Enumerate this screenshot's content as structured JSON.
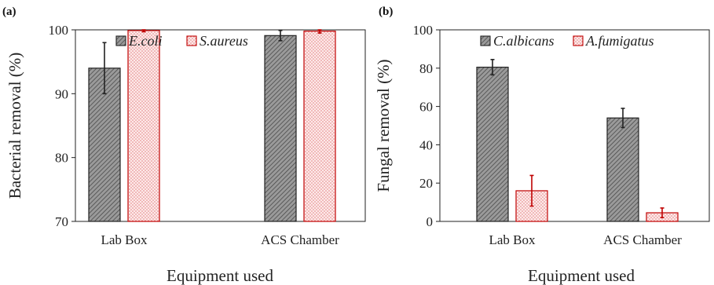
{
  "chart_data": [
    {
      "type": "bar",
      "panel_label": "(a)",
      "categories": [
        "Lab Box",
        "ACS Chamber"
      ],
      "series": [
        {
          "name": "E.coli",
          "values": [
            94,
            99.1
          ],
          "errors": [
            4,
            0.8
          ],
          "color": "#8c8c8c",
          "edge": "#222222",
          "pattern": "diagonal-hatch"
        },
        {
          "name": "S.aureus",
          "values": [
            99.9,
            99.8
          ],
          "errors": [
            0.2,
            0.3
          ],
          "color": "#fbe0e0",
          "edge": "#c00000",
          "pattern": "dots"
        }
      ],
      "xlabel": "Equipment used",
      "ylabel": "Bacterial removal (%)",
      "ylim": [
        70,
        100
      ],
      "yticks": [
        "70",
        "80",
        "90",
        "100"
      ],
      "legend_position": "top",
      "grid": false
    },
    {
      "type": "bar",
      "panel_label": "(b)",
      "categories": [
        "Lab Box",
        "ACS Chamber"
      ],
      "series": [
        {
          "name": "C.albicans",
          "values": [
            80.5,
            54
          ],
          "errors": [
            4,
            5
          ],
          "color": "#8c8c8c",
          "edge": "#222222",
          "pattern": "diagonal-hatch"
        },
        {
          "name": "A.fumigatus",
          "values": [
            16,
            4.5
          ],
          "errors": [
            8,
            2.5
          ],
          "color": "#fbe0e0",
          "edge": "#c00000",
          "pattern": "dots"
        }
      ],
      "xlabel": "Equipment used",
      "ylabel": "Fungal removal (%)",
      "ylim": [
        0,
        100
      ],
      "yticks": [
        "0",
        "20",
        "40",
        "60",
        "80",
        "100"
      ],
      "legend_position": "top",
      "grid": false
    }
  ]
}
